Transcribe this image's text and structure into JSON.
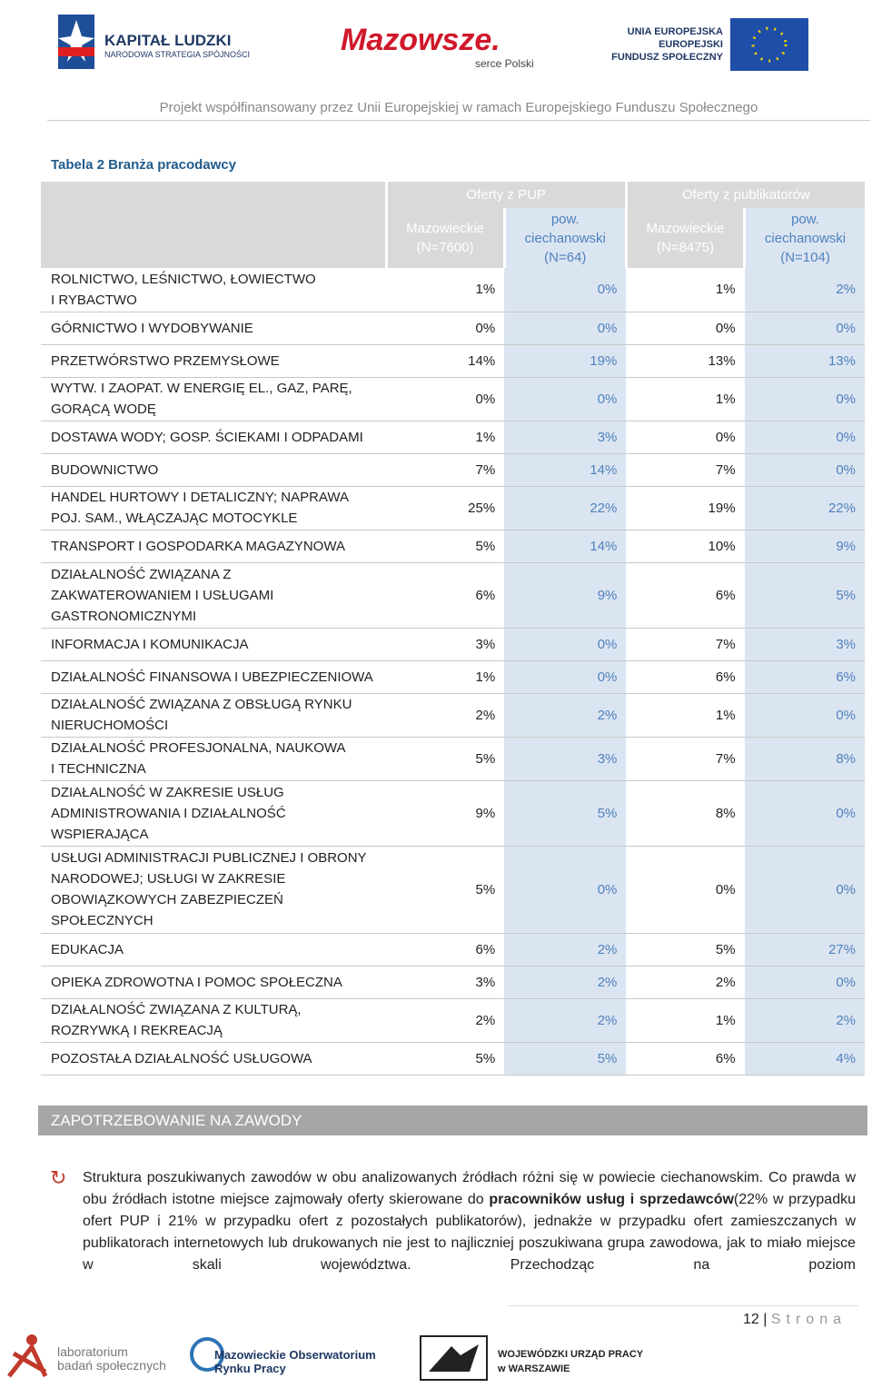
{
  "header": {
    "kl_title": "KAPITAŁ LUDZKI",
    "kl_sub": "NARODOWA STRATEGIA SPÓJNOŚCI",
    "maz_title": "Mazowsze.",
    "maz_sub": "serce Polski",
    "ue_lines": [
      "UNIA EUROPEJSKA",
      "EUROPEJSKI",
      "FUNDUSZ SPOŁECZNY"
    ],
    "tagline": "Projekt współfinansowany przez Unii Europejskiej w ramach Europejskiego Funduszu Społecznego"
  },
  "table": {
    "caption": "Tabela 2 Branża pracodawcy",
    "groups": [
      "Oferty z PUP",
      "Oferty z publikatorów"
    ],
    "columns": [
      [
        "Mazowieckie",
        "(N=7600)"
      ],
      [
        "pow.",
        "ciechanowski",
        "(N=64)"
      ],
      [
        "Mazowieckie",
        "(N=8475)"
      ],
      [
        "pow.",
        "ciechanowski",
        "(N=104)"
      ]
    ],
    "rows": [
      {
        "label": [
          "ROLNICTWO, LEŚNICTWO, ŁOWIECTWO",
          "I RYBACTWO"
        ],
        "values": [
          "1%",
          "0%",
          "1%",
          "2%"
        ]
      },
      {
        "label": [
          "GÓRNICTWO I WYDOBYWANIE"
        ],
        "values": [
          "0%",
          "0%",
          "0%",
          "0%"
        ]
      },
      {
        "label": [
          "PRZETWÓRSTWO PRZEMYSŁOWE"
        ],
        "values": [
          "14%",
          "19%",
          "13%",
          "13%"
        ]
      },
      {
        "label": [
          "WYTW. I ZAOPAT. W ENERGIĘ EL., GAZ, PARĘ,",
          "GORĄCĄ WODĘ"
        ],
        "values": [
          "0%",
          "0%",
          "1%",
          "0%"
        ]
      },
      {
        "label": [
          "DOSTAWA WODY; GOSP. ŚCIEKAMI I ODPADAMI"
        ],
        "values": [
          "1%",
          "3%",
          "0%",
          "0%"
        ]
      },
      {
        "label": [
          "BUDOWNICTWO"
        ],
        "values": [
          "7%",
          "14%",
          "7%",
          "0%"
        ]
      },
      {
        "label": [
          "HANDEL HURTOWY I DETALICZNY; NAPRAWA",
          "POJ. SAM., WŁĄCZAJĄC MOTOCYKLE"
        ],
        "values": [
          "25%",
          "22%",
          "19%",
          "22%"
        ]
      },
      {
        "label": [
          "TRANSPORT I GOSPODARKA MAGAZYNOWA"
        ],
        "values": [
          "5%",
          "14%",
          "10%",
          "9%"
        ]
      },
      {
        "label": [
          "DZIAŁALNOŚĆ ZWIĄZANA Z",
          "ZAKWATEROWANIEM I USŁUGAMI",
          "GASTRONOMICZNYMI"
        ],
        "values": [
          "6%",
          "9%",
          "6%",
          "5%"
        ]
      },
      {
        "label": [
          "INFORMACJA I KOMUNIKACJA"
        ],
        "values": [
          "3%",
          "0%",
          "7%",
          "3%"
        ]
      },
      {
        "label": [
          "DZIAŁALNOŚĆ FINANSOWA I UBEZPIECZENIOWA"
        ],
        "values": [
          "1%",
          "0%",
          "6%",
          "6%"
        ]
      },
      {
        "label": [
          "DZIAŁALNOŚĆ ZWIĄZANA Z OBSŁUGĄ RYNKU",
          "NIERUCHOMOŚCI"
        ],
        "values": [
          "2%",
          "2%",
          "1%",
          "0%"
        ]
      },
      {
        "label": [
          "DZIAŁALNOŚĆ PROFESJONALNA, NAUKOWA",
          "I TECHNICZNA"
        ],
        "values": [
          "5%",
          "3%",
          "7%",
          "8%"
        ]
      },
      {
        "label": [
          "DZIAŁALNOŚĆ W ZAKRESIE USŁUG",
          "ADMINISTROWANIA I DZIAŁALNOŚĆ",
          "WSPIERAJĄCA"
        ],
        "values": [
          "9%",
          "5%",
          "8%",
          "0%"
        ]
      },
      {
        "label": [
          "USŁUGI ADMINISTRACJI PUBLICZNEJ I OBRONY",
          "NARODOWEJ; USŁUGI W ZAKRESIE",
          "OBOWIĄZKOWYCH ZABEZPIECZEŃ",
          "SPOŁECZNYCH"
        ],
        "values": [
          "5%",
          "0%",
          "0%",
          "0%"
        ]
      },
      {
        "label": [
          "EDUKACJA"
        ],
        "values": [
          "6%",
          "2%",
          "5%",
          "27%"
        ]
      },
      {
        "label": [
          "OPIEKA ZDROWOTNA I POMOC SPOŁECZNA"
        ],
        "values": [
          "3%",
          "2%",
          "2%",
          "0%"
        ]
      },
      {
        "label": [
          "DZIAŁALNOŚĆ ZWIĄZANA Z KULTURĄ,",
          "ROZRYWKĄ I REKREACJĄ"
        ],
        "values": [
          "2%",
          "2%",
          "1%",
          "2%"
        ]
      },
      {
        "label": [
          "POZOSTAŁA DZIAŁALNOŚĆ USŁUGOWA"
        ],
        "values": [
          "5%",
          "5%",
          "6%",
          "4%"
        ]
      }
    ]
  },
  "section": {
    "title": "ZAPOTRZEBOWANIE NA ZAWODY",
    "paragraph": [
      {
        "text": "Struktura poszukiwanych zawodów w obu analizowanych źródłach różni się w powiecie ciechanowskim. Co prawda w obu źródłach istotne miejsce zajmowały oferty skierowane do ",
        "bold": false
      },
      {
        "text": "pracowników usług i sprzedawców",
        "bold": true
      },
      {
        "text": "(22% w przypadku ofert PUP i 21% w przypadku ofert z pozostałych publikatorów), jednakże w przypadku ofert zamieszczanych w publikatorach internetowych lub drukowanych nie jest to najliczniej poszukiwana grupa zawodowa, jak to miało miejsce w skali województwa. Przechodząc na poziom",
        "bold": false
      }
    ]
  },
  "footer": {
    "page": "12",
    "page_word": "Strona",
    "lab": [
      "laboratorium",
      "badań społecznych"
    ],
    "obs": [
      "Mazowieckie Obserwatorium",
      "Rynku Pracy"
    ],
    "wup": [
      "WOJEWÓDZKI URZĄD PRACY",
      "w WARSZAWIE"
    ]
  }
}
